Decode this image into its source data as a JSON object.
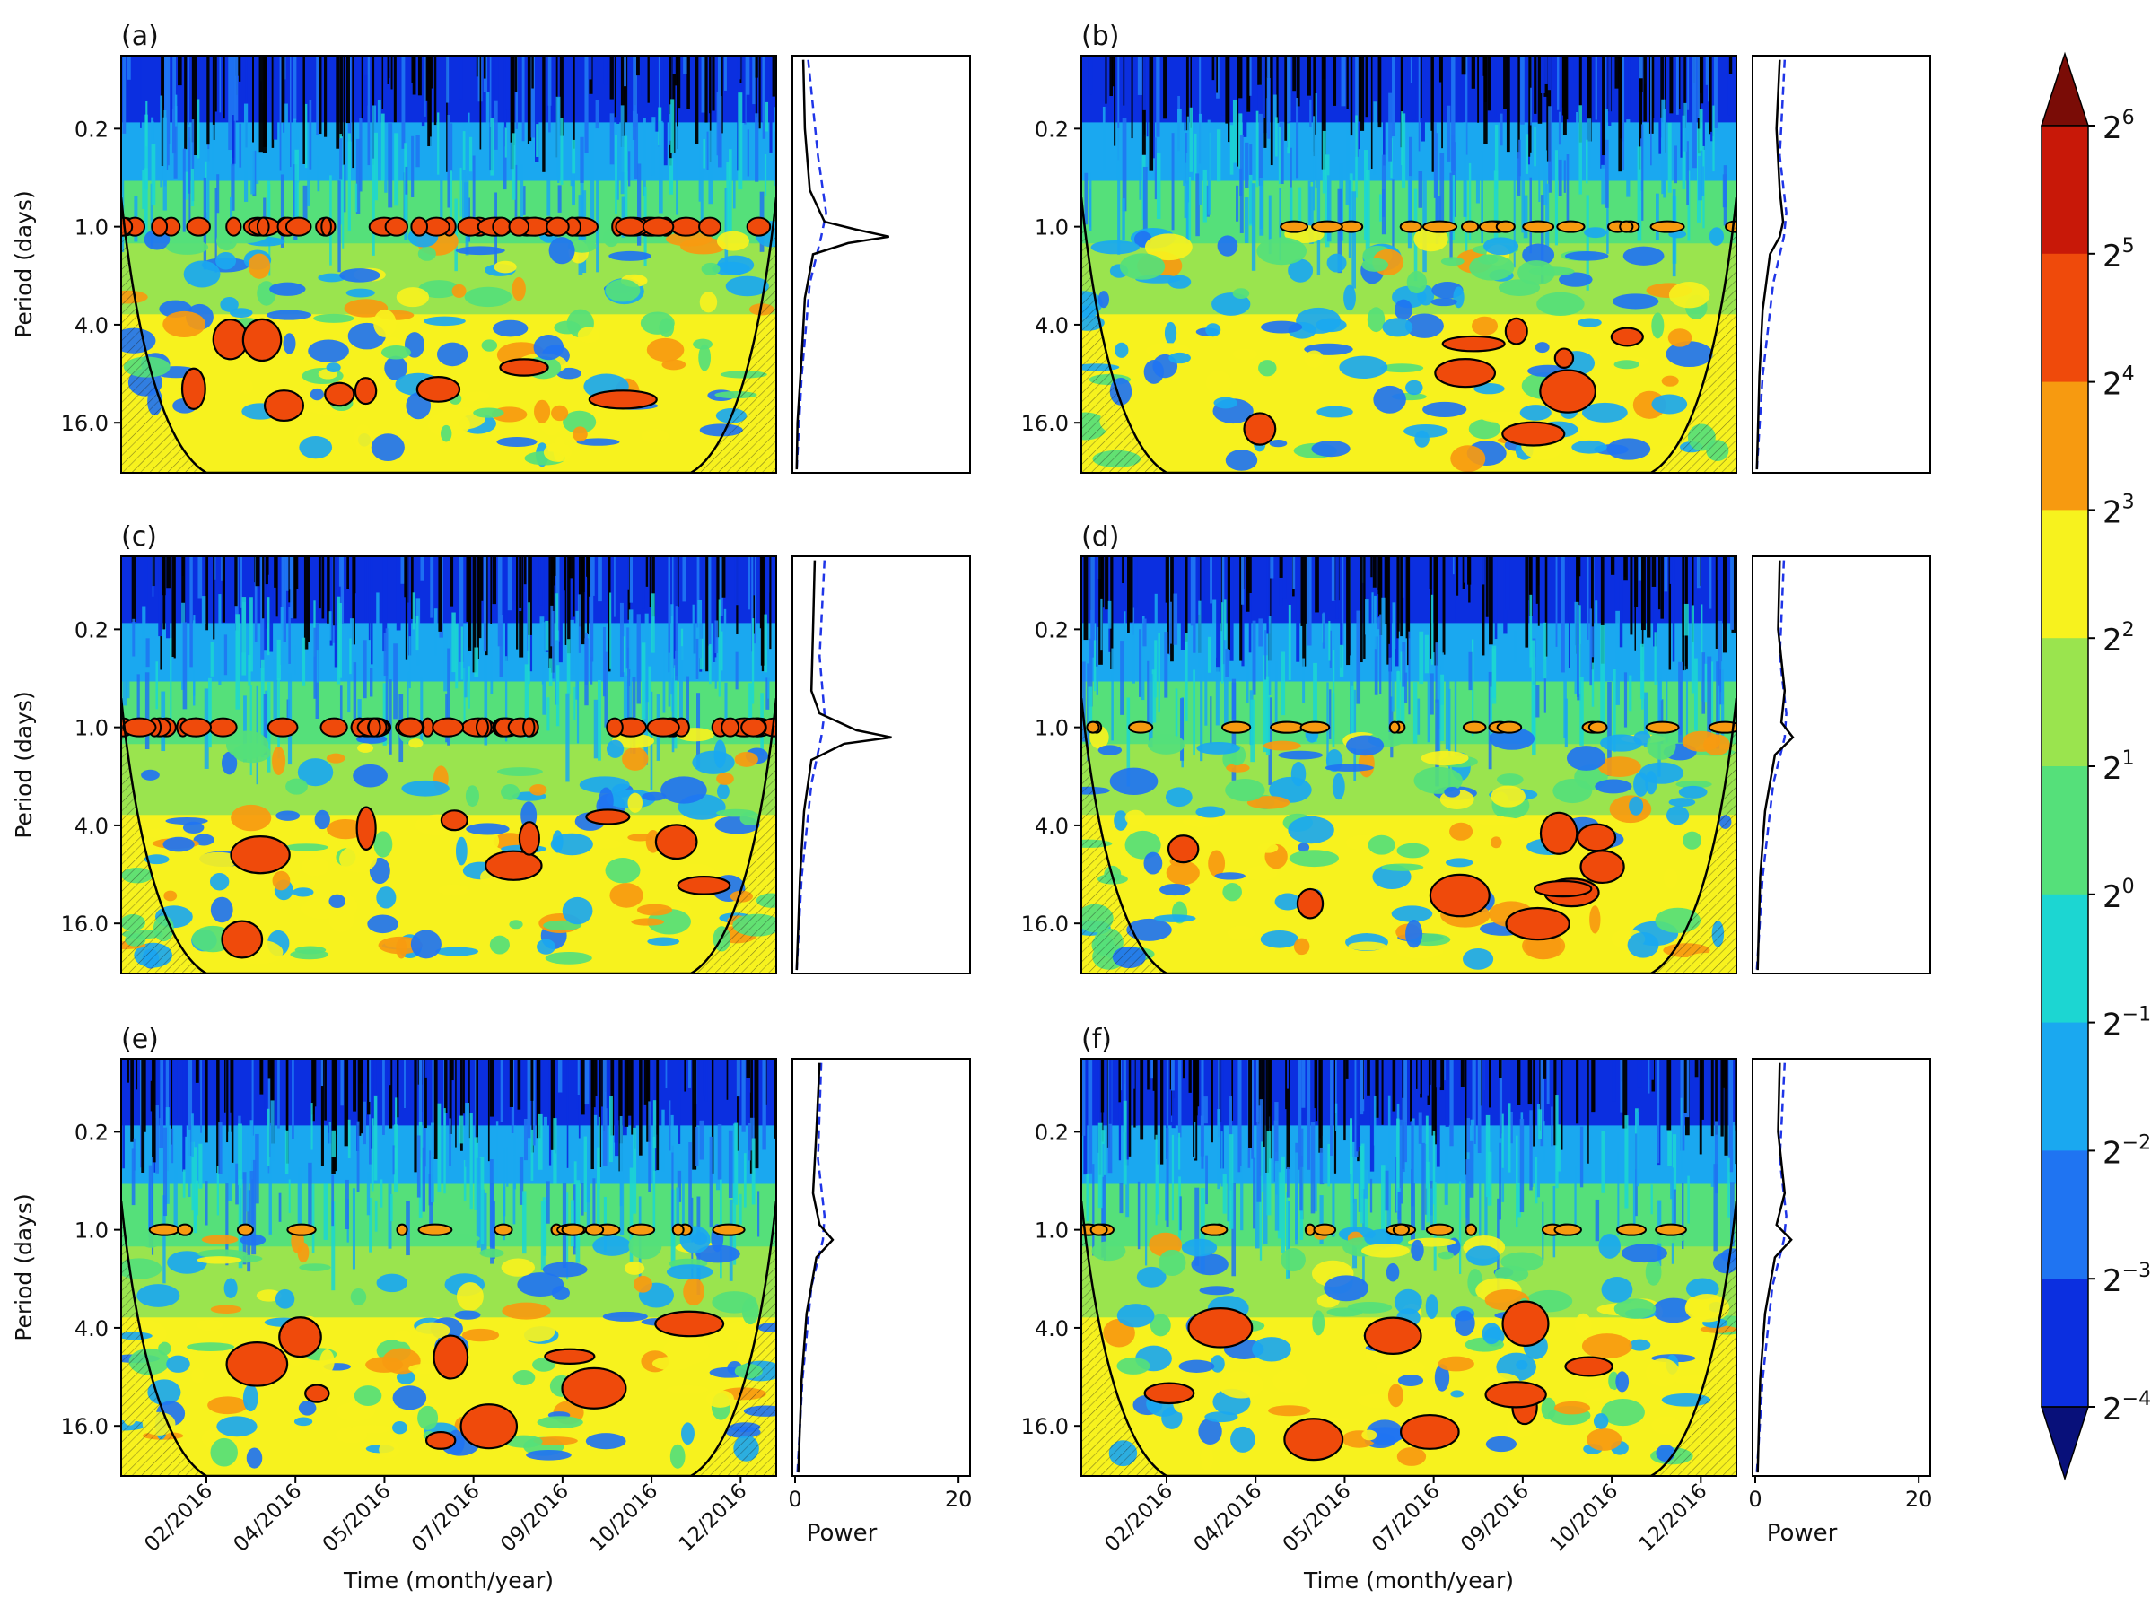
{
  "figure": {
    "shared_y_label": "Period (days)",
    "shared_x_label": "Time (month/year)",
    "power_label": "Power"
  },
  "colorbar": {
    "levels": [
      "2^-4",
      "2^-3",
      "2^-2",
      "2^-1",
      "2^0",
      "2^1",
      "2^2",
      "2^3",
      "2^4",
      "2^5",
      "2^6"
    ],
    "colors": [
      "#08107a",
      "#0b2fe0",
      "#1f74f2",
      "#1aa8f0",
      "#1cd6d2",
      "#55e07a",
      "#9ae44e",
      "#f7f21e",
      "#f79a10",
      "#ef4a0b",
      "#c81808",
      "#7a0c06"
    ],
    "extend": "both"
  },
  "chart_data": [
    {
      "type": "heatmap",
      "panel": "(a)",
      "xlabel": "",
      "ylabel": "Period (days)",
      "yticks": [
        "0.2",
        "1.0",
        "4.0",
        "16.0"
      ],
      "xticks": [],
      "power_xticks": [],
      "diurnal_power_peak": 11.5,
      "power_curve": [
        [
          0.05,
          1.0
        ],
        [
          0.2,
          1.2
        ],
        [
          0.5,
          1.8
        ],
        [
          0.8,
          3.6
        ],
        [
          0.9,
          7.5
        ],
        [
          1.0,
          11.5
        ],
        [
          1.1,
          6.5
        ],
        [
          1.3,
          2.2
        ],
        [
          2.5,
          1.2
        ],
        [
          6.0,
          0.8
        ],
        [
          16.0,
          0.3
        ],
        [
          32.0,
          0.2
        ]
      ],
      "significance_curve": [
        [
          0.05,
          1.6
        ],
        [
          0.3,
          2.8
        ],
        [
          0.7,
          3.8
        ],
        [
          1.0,
          3.2
        ],
        [
          2.0,
          1.8
        ],
        [
          8.0,
          0.8
        ],
        [
          32.0,
          0.2
        ]
      ]
    },
    {
      "type": "heatmap",
      "panel": "(b)",
      "xlabel": "",
      "ylabel": "",
      "yticks": [
        "0.2",
        "1.0",
        "4.0",
        "16.0"
      ],
      "xticks": [],
      "power_xticks": [],
      "diurnal_power_peak": 3.5,
      "power_curve": [
        [
          0.05,
          3.0
        ],
        [
          0.2,
          2.6
        ],
        [
          0.5,
          3.0
        ],
        [
          0.8,
          3.4
        ],
        [
          1.0,
          3.0
        ],
        [
          1.3,
          1.8
        ],
        [
          3.0,
          0.9
        ],
        [
          8.0,
          0.5
        ],
        [
          32.0,
          0.2
        ]
      ],
      "significance_curve": [
        [
          0.05,
          3.6
        ],
        [
          0.3,
          3.0
        ],
        [
          0.7,
          3.8
        ],
        [
          1.0,
          3.5
        ],
        [
          2.0,
          2.2
        ],
        [
          8.0,
          0.9
        ],
        [
          32.0,
          0.2
        ]
      ]
    },
    {
      "type": "heatmap",
      "panel": "(c)",
      "xlabel": "",
      "ylabel": "Period (days)",
      "yticks": [
        "0.2",
        "1.0",
        "4.0",
        "16.0"
      ],
      "xticks": [],
      "power_xticks": [],
      "diurnal_power_peak": 11.8,
      "power_curve": [
        [
          0.05,
          2.4
        ],
        [
          0.2,
          2.2
        ],
        [
          0.5,
          2.0
        ],
        [
          0.7,
          3.0
        ],
        [
          0.9,
          7.5
        ],
        [
          1.0,
          11.8
        ],
        [
          1.1,
          6.0
        ],
        [
          1.4,
          2.0
        ],
        [
          3.0,
          1.1
        ],
        [
          8.0,
          0.6
        ],
        [
          32.0,
          0.2
        ]
      ],
      "significance_curve": [
        [
          0.05,
          3.6
        ],
        [
          0.3,
          3.0
        ],
        [
          0.7,
          3.6
        ],
        [
          1.0,
          3.2
        ],
        [
          2.0,
          2.0
        ],
        [
          8.0,
          0.8
        ],
        [
          32.0,
          0.2
        ]
      ]
    },
    {
      "type": "heatmap",
      "panel": "(d)",
      "xlabel": "",
      "ylabel": "",
      "yticks": [
        "0.2",
        "1.0",
        "4.0",
        "16.0"
      ],
      "xticks": [],
      "power_xticks": [],
      "diurnal_power_peak": 4.6,
      "power_curve": [
        [
          0.05,
          3.0
        ],
        [
          0.2,
          2.8
        ],
        [
          0.5,
          3.6
        ],
        [
          0.8,
          3.2
        ],
        [
          1.0,
          4.6
        ],
        [
          1.3,
          2.4
        ],
        [
          3.0,
          1.2
        ],
        [
          8.0,
          0.6
        ],
        [
          32.0,
          0.3
        ]
      ],
      "significance_curve": [
        [
          0.05,
          3.5
        ],
        [
          0.3,
          3.0
        ],
        [
          0.7,
          3.8
        ],
        [
          1.0,
          3.6
        ],
        [
          2.0,
          2.2
        ],
        [
          8.0,
          0.9
        ],
        [
          32.0,
          0.2
        ]
      ]
    },
    {
      "type": "heatmap",
      "panel": "(e)",
      "xlabel": "Time (month/year)",
      "ylabel": "Period (days)",
      "yticks": [
        "0.2",
        "1.0",
        "4.0",
        "16.0"
      ],
      "xticks": [
        "02/2016",
        "04/2016",
        "05/2016",
        "07/2016",
        "09/2016",
        "10/2016",
        "12/2016"
      ],
      "power_xticks": [
        "0",
        "20"
      ],
      "diurnal_power_peak": 4.6,
      "power_curve": [
        [
          0.05,
          3.0
        ],
        [
          0.2,
          2.6
        ],
        [
          0.5,
          2.2
        ],
        [
          0.8,
          3.0
        ],
        [
          1.0,
          4.6
        ],
        [
          1.3,
          2.6
        ],
        [
          3.0,
          1.4
        ],
        [
          8.0,
          0.8
        ],
        [
          32.0,
          0.4
        ]
      ],
      "significance_curve": [
        [
          0.05,
          3.2
        ],
        [
          0.3,
          2.8
        ],
        [
          0.7,
          3.6
        ],
        [
          1.0,
          3.4
        ],
        [
          2.0,
          2.0
        ],
        [
          8.0,
          0.9
        ],
        [
          32.0,
          0.3
        ]
      ]
    },
    {
      "type": "heatmap",
      "panel": "(f)",
      "xlabel": "Time (month/year)",
      "ylabel": "",
      "yticks": [
        "0.2",
        "1.0",
        "4.0",
        "16.0"
      ],
      "xticks": [
        "02/2016",
        "04/2016",
        "05/2016",
        "07/2016",
        "09/2016",
        "10/2016",
        "12/2016"
      ],
      "power_xticks": [
        "0",
        "20"
      ],
      "diurnal_power_peak": 4.4,
      "power_curve": [
        [
          0.05,
          3.0
        ],
        [
          0.2,
          2.8
        ],
        [
          0.5,
          3.6
        ],
        [
          0.8,
          2.6
        ],
        [
          1.0,
          4.4
        ],
        [
          1.3,
          2.4
        ],
        [
          3.0,
          1.2
        ],
        [
          8.0,
          0.6
        ],
        [
          32.0,
          0.3
        ]
      ],
      "significance_curve": [
        [
          0.05,
          3.6
        ],
        [
          0.3,
          3.0
        ],
        [
          0.7,
          3.8
        ],
        [
          1.0,
          3.5
        ],
        [
          2.0,
          2.1
        ],
        [
          8.0,
          0.9
        ],
        [
          32.0,
          0.2
        ]
      ]
    }
  ]
}
